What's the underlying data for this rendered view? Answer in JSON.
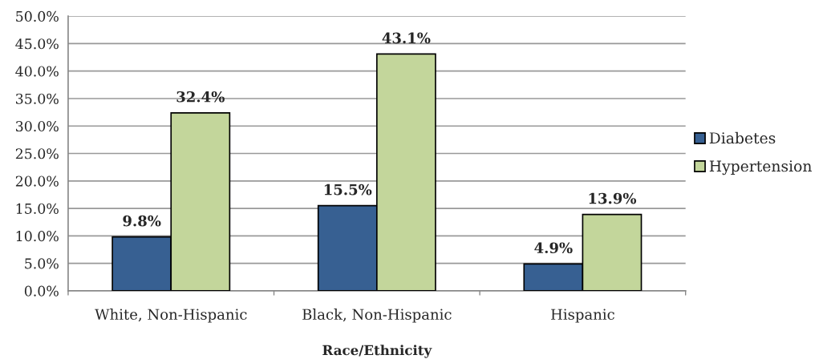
{
  "chart_data": {
    "type": "bar",
    "xlabel": "Race/Ethnicity",
    "categories": [
      "White, Non-Hispanic",
      "Black, Non-Hispanic",
      "Hispanic"
    ],
    "series": [
      {
        "name": "Diabetes",
        "color": "#376092",
        "values": [
          9.8,
          15.5,
          4.9
        ],
        "value_labels": [
          "9.8%",
          "15.5%",
          "4.9%"
        ]
      },
      {
        "name": "Hypertension",
        "color": "#c3d69b",
        "values": [
          32.4,
          43.1,
          13.9
        ],
        "value_labels": [
          "32.4%",
          "43.1%",
          "13.9%"
        ]
      }
    ],
    "ylim": [
      0,
      50
    ],
    "yticks": [
      {
        "value": 0,
        "label": "0.0%"
      },
      {
        "value": 5,
        "label": "5.0%"
      },
      {
        "value": 10,
        "label": "10.0%"
      },
      {
        "value": 15,
        "label": "15.0%"
      },
      {
        "value": 20,
        "label": "20.0%"
      },
      {
        "value": 25,
        "label": "25.0%"
      },
      {
        "value": 30,
        "label": "30.0%"
      },
      {
        "value": 35,
        "label": "35.0%"
      },
      {
        "value": 40,
        "label": "40.0%"
      },
      {
        "value": 45,
        "label": "45.0%"
      },
      {
        "value": 50,
        "label": "50.0%"
      }
    ],
    "grid": "y",
    "legend": "right"
  }
}
